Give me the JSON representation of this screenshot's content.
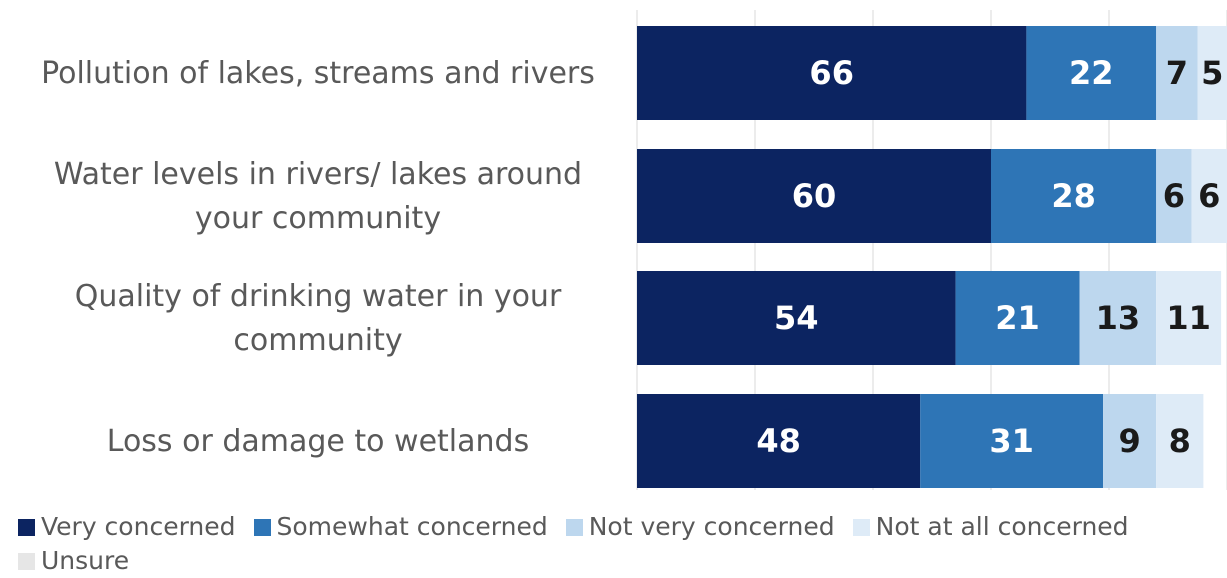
{
  "chart_data": {
    "type": "bar",
    "orientation": "horizontal",
    "stacked": true,
    "categories": [
      "Pollution of lakes, streams and rivers",
      "Water levels in rivers/ lakes around your community",
      "Quality of drinking water in your community",
      "Loss or damage to wetlands"
    ],
    "series": [
      {
        "name": "Very concerned",
        "color": "#0c2461",
        "label_color": "#ffffff",
        "values": [
          66,
          60,
          54,
          48
        ]
      },
      {
        "name": "Somewhat concerned",
        "color": "#2e75b6",
        "label_color": "#ffffff",
        "values": [
          22,
          28,
          21,
          31
        ]
      },
      {
        "name": "Not very concerned",
        "color": "#bdd7ee",
        "label_color": "#1a1a1a",
        "values": [
          7,
          6,
          13,
          9
        ]
      },
      {
        "name": "Not at all concerned",
        "color": "#deebf7",
        "label_color": "#1a1a1a",
        "values": [
          5,
          6,
          11,
          8
        ]
      },
      {
        "name": "Unsure",
        "color": "#e6e6e6",
        "label_color": "#1a1a1a",
        "values": [
          null,
          null,
          null,
          null
        ]
      }
    ],
    "xlim": [
      0,
      100
    ],
    "grid": true,
    "legend_position": "bottom"
  }
}
